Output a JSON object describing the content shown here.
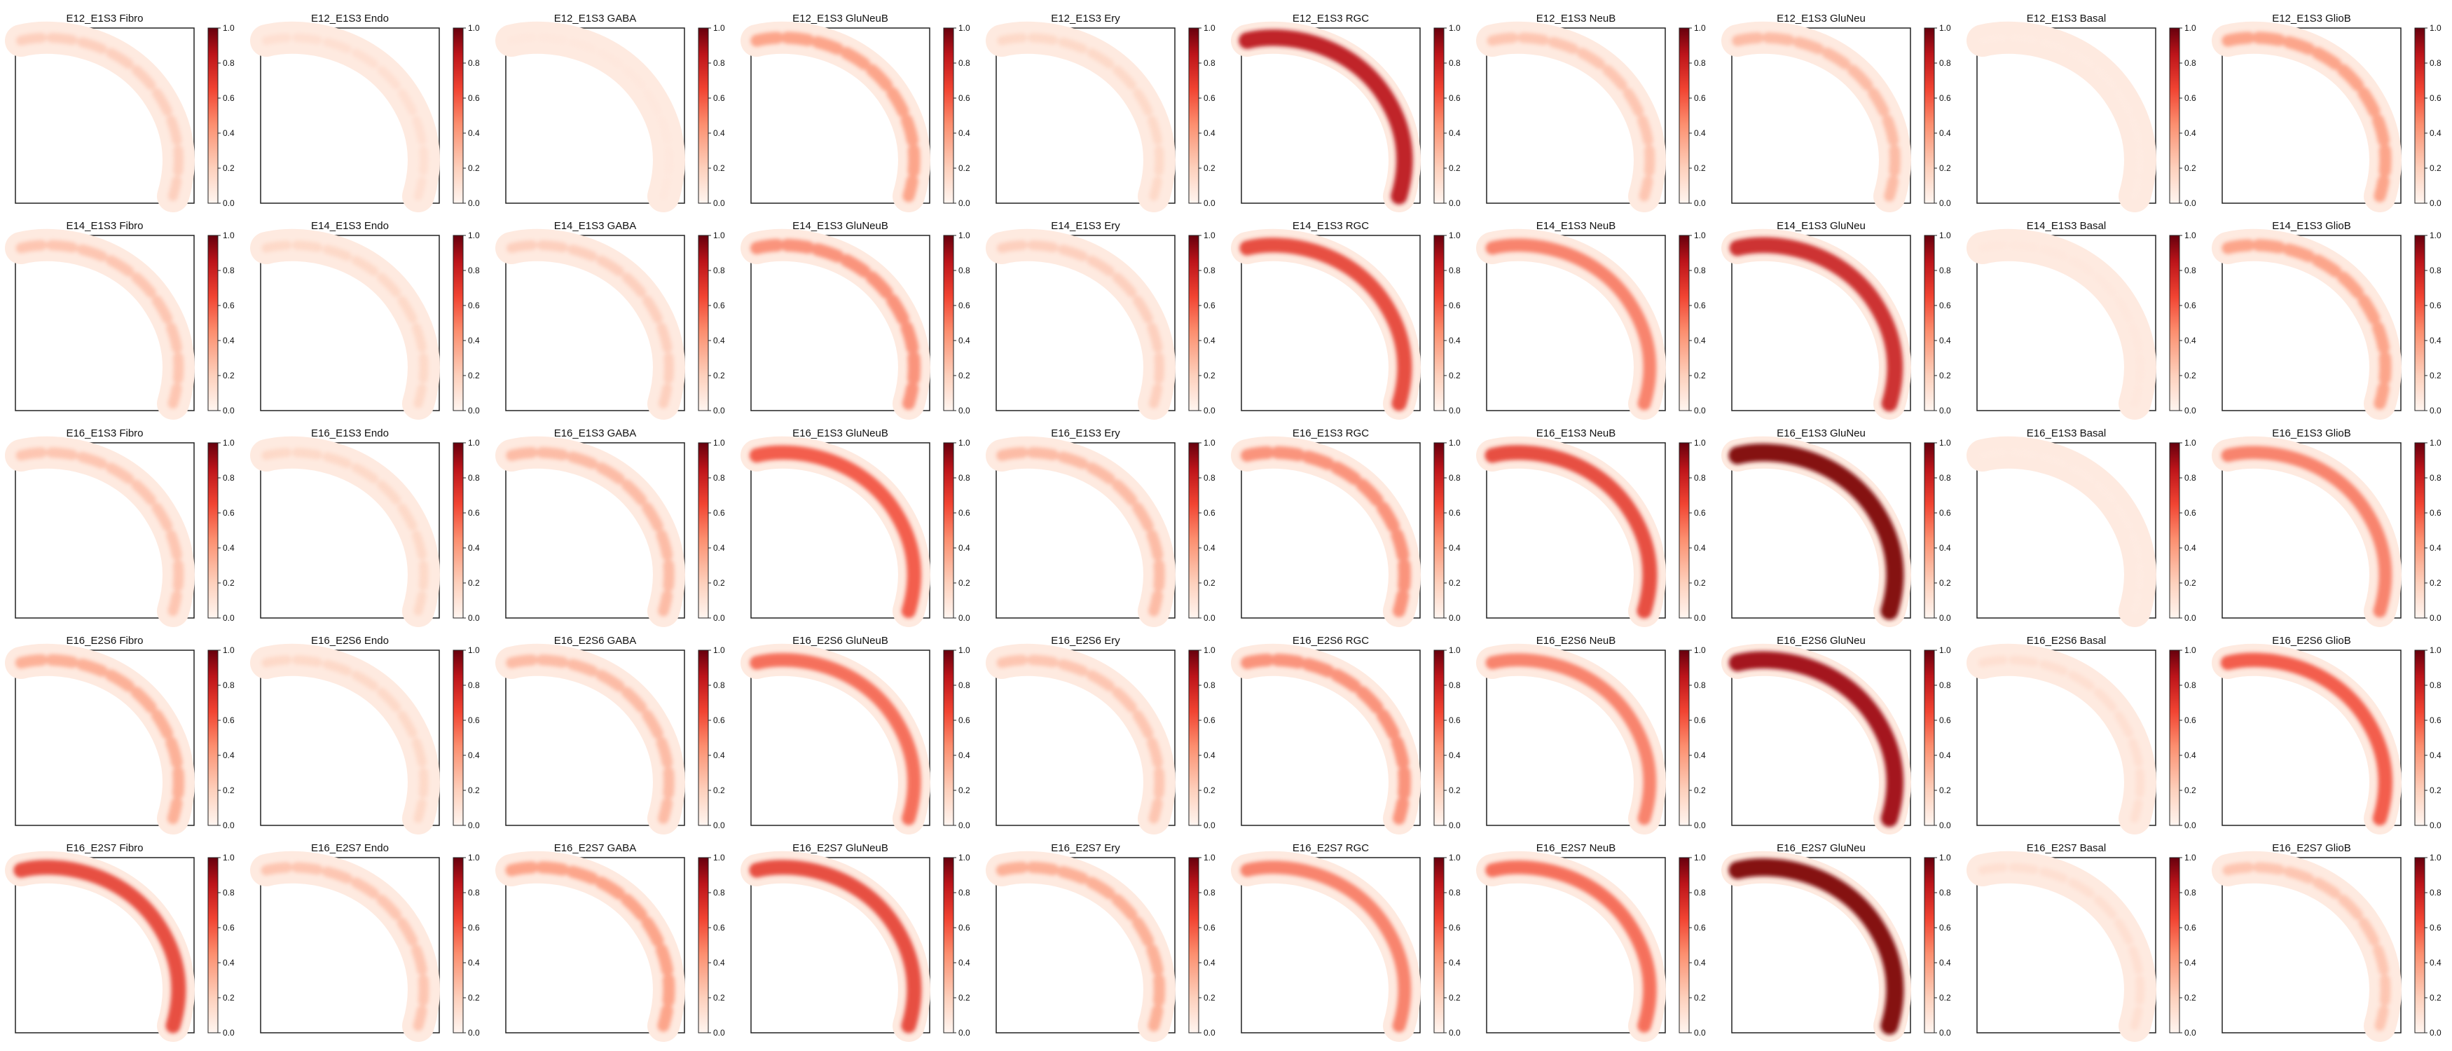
{
  "figure": {
    "rows": [
      "E12_E1S3",
      "E14_E1S3",
      "E16_E1S3",
      "E16_E2S6",
      "E16_E2S7"
    ],
    "cell_types": [
      "Fibro",
      "Endo",
      "GABA",
      "GluNeuB",
      "Ery",
      "RGC",
      "NeuB",
      "GluNeu",
      "Basal",
      "GlioB"
    ],
    "colormap": {
      "name": "Reds",
      "low": "#fff5f0",
      "mid": "#fb6a4a",
      "high": "#67000d"
    },
    "colorbar_ticks": [
      "0.0",
      "0.2",
      "0.4",
      "0.6",
      "0.8",
      "1.0"
    ]
  },
  "chart_data": {
    "type": "heatmap",
    "description_of_values": "relative cell-type score along tissue section",
    "value_range": [
      0.0,
      1.0
    ],
    "panels_intensity": {
      "E12_E1S3": {
        "Fibro": 0.25,
        "Endo": 0.15,
        "GABA": 0.08,
        "GluNeuB": 0.45,
        "Ery": 0.2,
        "RGC": 0.85,
        "NeuB": 0.3,
        "GluNeu": 0.35,
        "Basal": 0.05,
        "GlioB": 0.45
      },
      "E14_E1S3": {
        "Fibro": 0.3,
        "Endo": 0.2,
        "GABA": 0.25,
        "GluNeuB": 0.5,
        "Ery": 0.25,
        "RGC": 0.7,
        "NeuB": 0.55,
        "GluNeu": 0.8,
        "Basal": 0.08,
        "GlioB": 0.45
      },
      "E16_E1S3": {
        "Fibro": 0.3,
        "Endo": 0.2,
        "GABA": 0.35,
        "GluNeuB": 0.65,
        "Ery": 0.35,
        "RGC": 0.5,
        "NeuB": 0.7,
        "GluNeu": 0.95,
        "Basal": 0.05,
        "GlioB": 0.55
      },
      "E16_E2S6": {
        "Fibro": 0.4,
        "Endo": 0.2,
        "GABA": 0.35,
        "GluNeuB": 0.6,
        "Ery": 0.3,
        "RGC": 0.5,
        "NeuB": 0.55,
        "GluNeu": 0.9,
        "Basal": 0.15,
        "GlioB": 0.65
      },
      "E16_E2S7": {
        "Fibro": 0.7,
        "Endo": 0.3,
        "GABA": 0.45,
        "GluNeuB": 0.7,
        "Ery": 0.4,
        "RGC": 0.55,
        "NeuB": 0.6,
        "GluNeu": 0.95,
        "Basal": 0.15,
        "GlioB": 0.3
      }
    },
    "colorbar_range": [
      0.0,
      1.0
    ],
    "grid": false,
    "legend": "colorbar right of each panel"
  }
}
